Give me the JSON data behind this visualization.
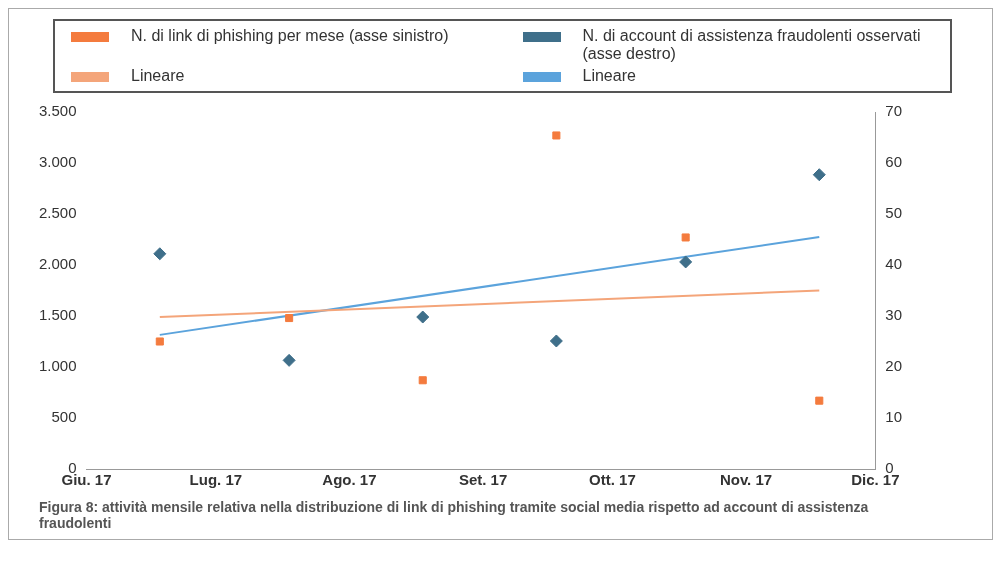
{
  "chart_data": {
    "type": "scatter",
    "legend": "top",
    "grid": false,
    "annotations": [
      "Figura 8: attività mensile relativa nella distribuzione di link di phishing tramite social media rispetto ad account di assistenza fraudolenti"
    ],
    "xlim": [
      "2017-06-01",
      "2017-12-01"
    ],
    "xticks": [
      {
        "value": "2017-06-01",
        "label": "Giu. 17"
      },
      {
        "value": "2017-07-01",
        "label": "Lug. 17"
      },
      {
        "value": "2017-08-01",
        "label": "Ago. 17"
      },
      {
        "value": "2017-09-01",
        "label": "Set. 17"
      },
      {
        "value": "2017-10-01",
        "label": "Ott. 17"
      },
      {
        "value": "2017-11-01",
        "label": "Nov. 17"
      },
      {
        "value": "2017-12-01",
        "label": "Dic. 17"
      }
    ],
    "ylim": [
      0,
      3500
    ],
    "yticks": [
      {
        "value": 0,
        "label": "0"
      },
      {
        "value": 500,
        "label": "500"
      },
      {
        "value": 1000,
        "label": "1.000"
      },
      {
        "value": 1500,
        "label": "1.500"
      },
      {
        "value": 2000,
        "label": "2.000"
      },
      {
        "value": 2500,
        "label": "2.500"
      },
      {
        "value": 3000,
        "label": "3.000"
      },
      {
        "value": 3500,
        "label": "3.500"
      }
    ],
    "y2lim": [
      0,
      70
    ],
    "y2ticks": [
      0,
      10,
      20,
      30,
      40,
      50,
      60,
      70
    ],
    "series": [
      {
        "name": "N. di link di phishing per mese (asse sinistro)",
        "marker": "square",
        "color": "#f47b3e",
        "x": [
          "2017-06-18",
          "2017-07-18",
          "2017-08-18",
          "2017-09-18",
          "2017-10-18",
          "2017-11-18"
        ],
        "values": [
          1250,
          1480,
          870,
          3270,
          2270,
          670
        ]
      },
      {
        "name": "N. di account di assistenza fraudolenti osservati (asse destro)",
        "marker": "diamond",
        "axis": "y2",
        "color": "#3f6f8a",
        "x": [
          "2017-06-18",
          "2017-07-18",
          "2017-08-18",
          "2017-09-18",
          "2017-10-18",
          "2017-11-18"
        ],
        "values": [
          42.2,
          21.3,
          29.8,
          25.1,
          40.6,
          57.7
        ]
      },
      {
        "name": "Lineare",
        "type": "line",
        "color": "#f4a57a",
        "x": [
          "2017-06-18",
          "2017-11-18"
        ],
        "values": [
          1490,
          1750
        ]
      },
      {
        "name": "Lineare",
        "type": "line",
        "axis": "y2",
        "color": "#5ba3dc",
        "x": [
          "2017-06-18",
          "2017-11-18"
        ],
        "values": [
          26.3,
          45.5
        ]
      }
    ]
  }
}
